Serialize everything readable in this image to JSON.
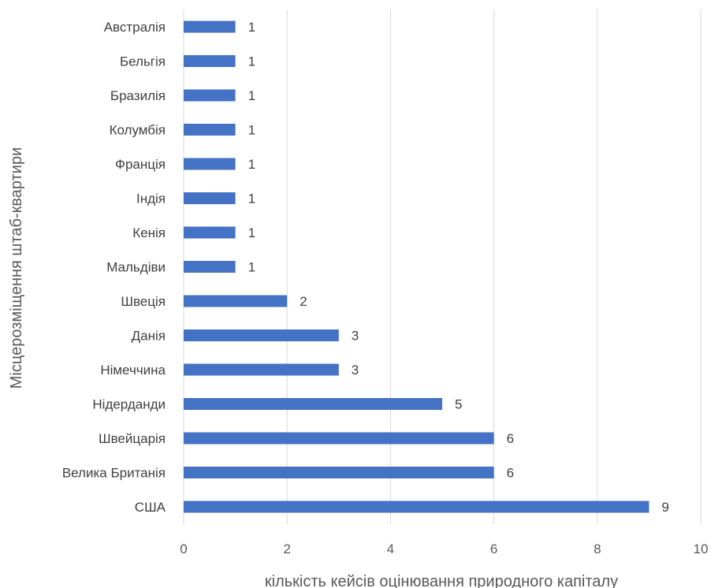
{
  "chart_data": {
    "type": "bar",
    "orientation": "horizontal",
    "categories": [
      "Австралія",
      "Бельгія",
      "Бразилія",
      "Колумбія",
      "Франція",
      "Індія",
      "Кенія",
      "Мальдіви",
      "Швеція",
      "Данія",
      "Німеччина",
      "Нідерданди",
      "Швейцарія",
      "Велика Британія",
      "США"
    ],
    "values": [
      1,
      1,
      1,
      1,
      1,
      1,
      1,
      1,
      2,
      3,
      3,
      5,
      6,
      6,
      9
    ],
    "xlabel": "кількість кейсів оцінювання природного капіталу",
    "ylabel": "Місцерозміщення штаб-квартири",
    "xlim": [
      0,
      10
    ],
    "xticks": [
      0,
      2,
      4,
      6,
      8,
      10
    ],
    "grid": "vertical",
    "legend": "none",
    "data_labels": true,
    "colors": {
      "bar": "#4472c4",
      "grid": "#d9d9d9"
    }
  }
}
